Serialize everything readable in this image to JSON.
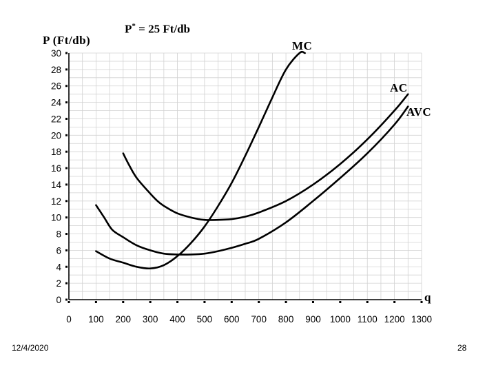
{
  "chart_data": {
    "type": "line",
    "title": "",
    "ylabel": "P (Ft/db)",
    "xlabel": "q",
    "annotation": {
      "label": "P",
      "superscript": "*",
      "rest": " = 25 Ft/db"
    },
    "xlim": [
      0,
      1300
    ],
    "ylim": [
      0,
      30
    ],
    "xticks": [
      0,
      100,
      200,
      300,
      400,
      500,
      600,
      700,
      800,
      900,
      1000,
      1100,
      1200,
      1300
    ],
    "yticks": [
      0,
      2,
      4,
      6,
      8,
      10,
      12,
      14,
      16,
      18,
      20,
      22,
      24,
      26,
      28,
      30
    ],
    "grid": true,
    "series": [
      {
        "name": "MC",
        "x": [
          100,
          150,
          200,
          250,
          300,
          350,
          400,
          450,
          500,
          550,
          600,
          650,
          700,
          750,
          800,
          850,
          870
        ],
        "y": [
          5.9,
          5.0,
          4.5,
          4.0,
          3.8,
          4.2,
          5.3,
          6.9,
          8.9,
          11.4,
          14.2,
          17.5,
          21.0,
          24.6,
          28.0,
          30.0,
          30.0
        ]
      },
      {
        "name": "AC",
        "x": [
          200,
          220,
          250,
          300,
          330,
          360,
          400,
          450,
          500,
          550,
          600,
          650,
          700,
          800,
          900,
          1000,
          1100,
          1200,
          1250
        ],
        "y": [
          17.8,
          16.5,
          14.8,
          12.9,
          11.9,
          11.2,
          10.5,
          10.0,
          9.7,
          9.7,
          9.8,
          10.1,
          10.6,
          12.0,
          14.0,
          16.5,
          19.5,
          23.0,
          25.0
        ]
      },
      {
        "name": "AVC",
        "x": [
          100,
          130,
          160,
          200,
          250,
          300,
          350,
          400,
          450,
          500,
          550,
          600,
          650,
          700,
          800,
          900,
          1000,
          1100,
          1200,
          1250
        ],
        "y": [
          11.5,
          10.0,
          8.5,
          7.6,
          6.6,
          6.0,
          5.6,
          5.5,
          5.5,
          5.6,
          5.9,
          6.3,
          6.8,
          7.4,
          9.4,
          12.0,
          14.8,
          17.8,
          21.3,
          23.5
        ]
      }
    ]
  },
  "footer": {
    "date": "12/4/2020",
    "page": "28"
  }
}
